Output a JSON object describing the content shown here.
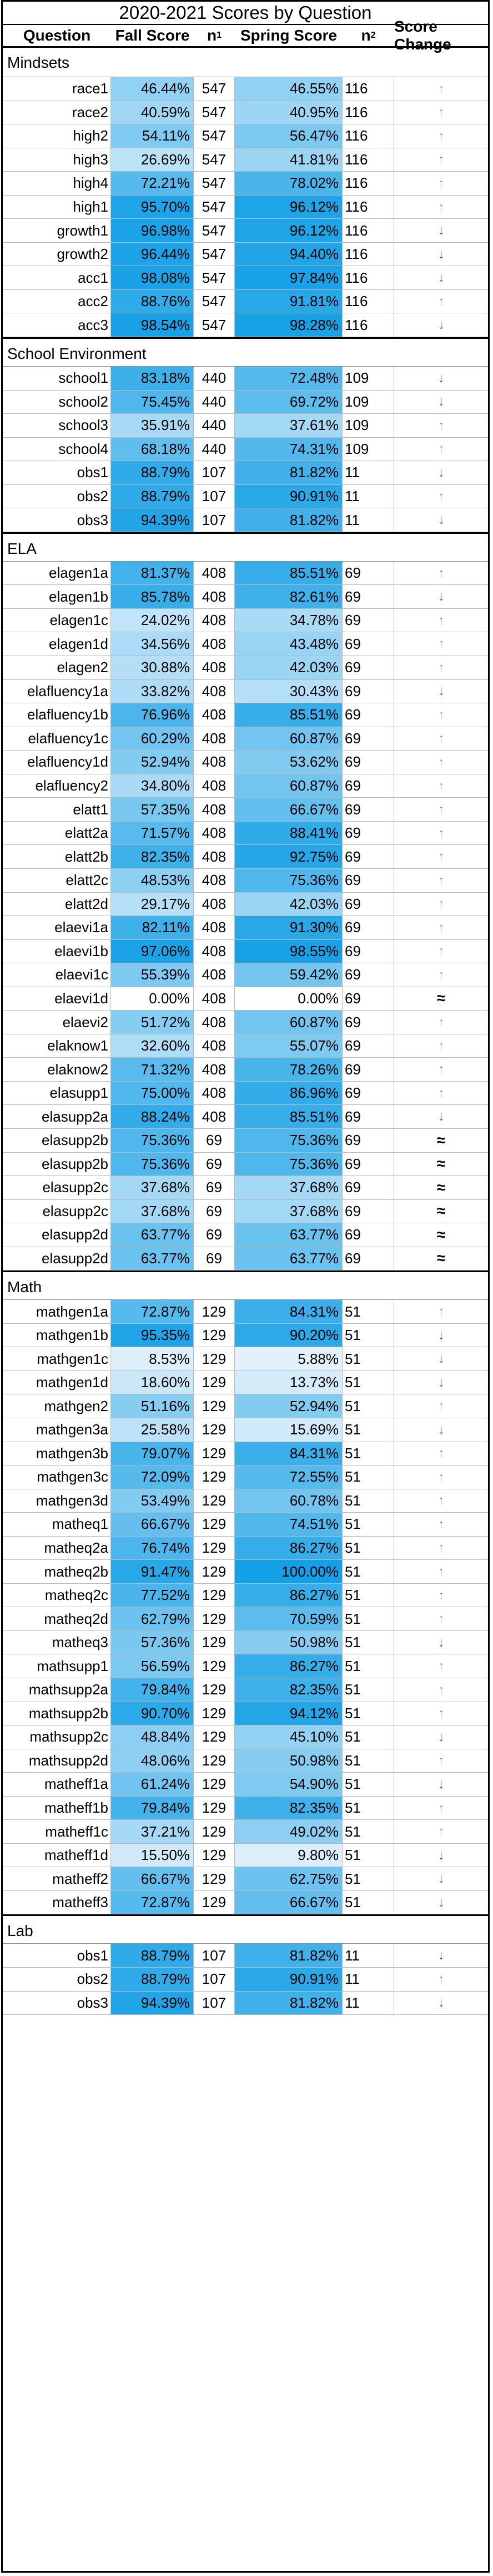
{
  "title": "2020-2021 Scores by Question",
  "headers": {
    "question": "Question",
    "fall": "Fall Score",
    "n1": "n",
    "n1_sub": "1",
    "spring": "Spring Score",
    "n2": "n",
    "n2_sub": "2",
    "change": "Score Change"
  },
  "sections": [
    {
      "name": "Mindsets",
      "rows": [
        {
          "q": "race1",
          "fall": "46.44%",
          "n1": "547",
          "spring": "46.55%",
          "n2": "116",
          "change": "up"
        },
        {
          "q": "race2",
          "fall": "40.59%",
          "n1": "547",
          "spring": "40.95%",
          "n2": "116",
          "change": "up"
        },
        {
          "q": "high2",
          "fall": "54.11%",
          "n1": "547",
          "spring": "56.47%",
          "n2": "116",
          "change": "up"
        },
        {
          "q": "high3",
          "fall": "26.69%",
          "n1": "547",
          "spring": "41.81%",
          "n2": "116",
          "change": "up"
        },
        {
          "q": "high4",
          "fall": "72.21%",
          "n1": "547",
          "spring": "78.02%",
          "n2": "116",
          "change": "up"
        },
        {
          "q": "high1",
          "fall": "95.70%",
          "n1": "547",
          "spring": "96.12%",
          "n2": "116",
          "change": "up"
        },
        {
          "q": "growth1",
          "fall": "96.98%",
          "n1": "547",
          "spring": "96.12%",
          "n2": "116",
          "change": "down"
        },
        {
          "q": "growth2",
          "fall": "96.44%",
          "n1": "547",
          "spring": "94.40%",
          "n2": "116",
          "change": "down"
        },
        {
          "q": "acc1",
          "fall": "98.08%",
          "n1": "547",
          "spring": "97.84%",
          "n2": "116",
          "change": "down"
        },
        {
          "q": "acc2",
          "fall": "88.76%",
          "n1": "547",
          "spring": "91.81%",
          "n2": "116",
          "change": "up"
        },
        {
          "q": "acc3",
          "fall": "98.54%",
          "n1": "547",
          "spring": "98.28%",
          "n2": "116",
          "change": "down"
        }
      ]
    },
    {
      "name": "School Environment",
      "rows": [
        {
          "q": "school1",
          "fall": "83.18%",
          "n1": "440",
          "spring": "72.48%",
          "n2": "109",
          "change": "down"
        },
        {
          "q": "school2",
          "fall": "75.45%",
          "n1": "440",
          "spring": "69.72%",
          "n2": "109",
          "change": "down"
        },
        {
          "q": "school3",
          "fall": "35.91%",
          "n1": "440",
          "spring": "37.61%",
          "n2": "109",
          "change": "up"
        },
        {
          "q": "school4",
          "fall": "68.18%",
          "n1": "440",
          "spring": "74.31%",
          "n2": "109",
          "change": "up"
        },
        {
          "q": "obs1",
          "fall": "88.79%",
          "n1": "107",
          "spring": "81.82%",
          "n2": "11",
          "change": "down"
        },
        {
          "q": "obs2",
          "fall": "88.79%",
          "n1": "107",
          "spring": "90.91%",
          "n2": "11",
          "change": "up"
        },
        {
          "q": "obs3",
          "fall": "94.39%",
          "n1": "107",
          "spring": "81.82%",
          "n2": "11",
          "change": "down"
        }
      ]
    },
    {
      "name": "ELA",
      "rows": [
        {
          "q": "elagen1a",
          "fall": "81.37%",
          "n1": "408",
          "spring": "85.51%",
          "n2": "69",
          "change": "up"
        },
        {
          "q": "elagen1b",
          "fall": "85.78%",
          "n1": "408",
          "spring": "82.61%",
          "n2": "69",
          "change": "down"
        },
        {
          "q": "elagen1c",
          "fall": "24.02%",
          "n1": "408",
          "spring": "34.78%",
          "n2": "69",
          "change": "up"
        },
        {
          "q": "elagen1d",
          "fall": "34.56%",
          "n1": "408",
          "spring": "43.48%",
          "n2": "69",
          "change": "up"
        },
        {
          "q": "elagen2",
          "fall": "30.88%",
          "n1": "408",
          "spring": "42.03%",
          "n2": "69",
          "change": "up"
        },
        {
          "q": "elafluency1a",
          "fall": "33.82%",
          "n1": "408",
          "spring": "30.43%",
          "n2": "69",
          "change": "down"
        },
        {
          "q": "elafluency1b",
          "fall": "76.96%",
          "n1": "408",
          "spring": "85.51%",
          "n2": "69",
          "change": "up"
        },
        {
          "q": "elafluency1c",
          "fall": "60.29%",
          "n1": "408",
          "spring": "60.87%",
          "n2": "69",
          "change": "up"
        },
        {
          "q": "elafluency1d",
          "fall": "52.94%",
          "n1": "408",
          "spring": "53.62%",
          "n2": "69",
          "change": "up"
        },
        {
          "q": "elafluency2",
          "fall": "34.80%",
          "n1": "408",
          "spring": "60.87%",
          "n2": "69",
          "change": "up"
        },
        {
          "q": "elatt1",
          "fall": "57.35%",
          "n1": "408",
          "spring": "66.67%",
          "n2": "69",
          "change": "up"
        },
        {
          "q": "elatt2a",
          "fall": "71.57%",
          "n1": "408",
          "spring": "88.41%",
          "n2": "69",
          "change": "up"
        },
        {
          "q": "elatt2b",
          "fall": "82.35%",
          "n1": "408",
          "spring": "92.75%",
          "n2": "69",
          "change": "up"
        },
        {
          "q": "elatt2c",
          "fall": "48.53%",
          "n1": "408",
          "spring": "75.36%",
          "n2": "69",
          "change": "up"
        },
        {
          "q": "elatt2d",
          "fall": "29.17%",
          "n1": "408",
          "spring": "42.03%",
          "n2": "69",
          "change": "up"
        },
        {
          "q": "elaevi1a",
          "fall": "82.11%",
          "n1": "408",
          "spring": "91.30%",
          "n2": "69",
          "change": "up"
        },
        {
          "q": "elaevi1b",
          "fall": "97.06%",
          "n1": "408",
          "spring": "98.55%",
          "n2": "69",
          "change": "up"
        },
        {
          "q": "elaevi1c",
          "fall": "55.39%",
          "n1": "408",
          "spring": "59.42%",
          "n2": "69",
          "change": "up"
        },
        {
          "q": "elaevi1d",
          "fall": "0.00%",
          "n1": "408",
          "spring": "0.00%",
          "n2": "69",
          "change": "same"
        },
        {
          "q": "elaevi2",
          "fall": "51.72%",
          "n1": "408",
          "spring": "60.87%",
          "n2": "69",
          "change": "up"
        },
        {
          "q": "elaknow1",
          "fall": "32.60%",
          "n1": "408",
          "spring": "55.07%",
          "n2": "69",
          "change": "up"
        },
        {
          "q": "elaknow2",
          "fall": "71.32%",
          "n1": "408",
          "spring": "78.26%",
          "n2": "69",
          "change": "up"
        },
        {
          "q": "elasupp1",
          "fall": "75.00%",
          "n1": "408",
          "spring": "86.96%",
          "n2": "69",
          "change": "up"
        },
        {
          "q": "elasupp2a",
          "fall": "88.24%",
          "n1": "408",
          "spring": "85.51%",
          "n2": "69",
          "change": "down"
        },
        {
          "q": "elasupp2b",
          "fall": "75.36%",
          "n1": "69",
          "spring": "75.36%",
          "n2": "69",
          "change": "same"
        },
        {
          "q": "elasupp2b",
          "fall": "75.36%",
          "n1": "69",
          "spring": "75.36%",
          "n2": "69",
          "change": "same"
        },
        {
          "q": "elasupp2c",
          "fall": "37.68%",
          "n1": "69",
          "spring": "37.68%",
          "n2": "69",
          "change": "same"
        },
        {
          "q": "elasupp2c",
          "fall": "37.68%",
          "n1": "69",
          "spring": "37.68%",
          "n2": "69",
          "change": "same"
        },
        {
          "q": "elasupp2d",
          "fall": "63.77%",
          "n1": "69",
          "spring": "63.77%",
          "n2": "69",
          "change": "same"
        },
        {
          "q": "elasupp2d",
          "fall": "63.77%",
          "n1": "69",
          "spring": "63.77%",
          "n2": "69",
          "change": "same"
        }
      ]
    },
    {
      "name": "Math",
      "rows": [
        {
          "q": "mathgen1a",
          "fall": "72.87%",
          "n1": "129",
          "spring": "84.31%",
          "n2": "51",
          "change": "up"
        },
        {
          "q": "mathgen1b",
          "fall": "95.35%",
          "n1": "129",
          "spring": "90.20%",
          "n2": "51",
          "change": "down"
        },
        {
          "q": "mathgen1c",
          "fall": "8.53%",
          "n1": "129",
          "spring": "5.88%",
          "n2": "51",
          "change": "down"
        },
        {
          "q": "mathgen1d",
          "fall": "18.60%",
          "n1": "129",
          "spring": "13.73%",
          "n2": "51",
          "change": "down"
        },
        {
          "q": "mathgen2",
          "fall": "51.16%",
          "n1": "129",
          "spring": "52.94%",
          "n2": "51",
          "change": "up"
        },
        {
          "q": "mathgen3a",
          "fall": "25.58%",
          "n1": "129",
          "spring": "15.69%",
          "n2": "51",
          "change": "down"
        },
        {
          "q": "mathgen3b",
          "fall": "79.07%",
          "n1": "129",
          "spring": "84.31%",
          "n2": "51",
          "change": "up"
        },
        {
          "q": "mathgen3c",
          "fall": "72.09%",
          "n1": "129",
          "spring": "72.55%",
          "n2": "51",
          "change": "up"
        },
        {
          "q": "mathgen3d",
          "fall": "53.49%",
          "n1": "129",
          "spring": "60.78%",
          "n2": "51",
          "change": "up"
        },
        {
          "q": "matheq1",
          "fall": "66.67%",
          "n1": "129",
          "spring": "74.51%",
          "n2": "51",
          "change": "up"
        },
        {
          "q": "matheq2a",
          "fall": "76.74%",
          "n1": "129",
          "spring": "86.27%",
          "n2": "51",
          "change": "up"
        },
        {
          "q": "matheq2b",
          "fall": "91.47%",
          "n1": "129",
          "spring": "100.00%",
          "n2": "51",
          "change": "up"
        },
        {
          "q": "matheq2c",
          "fall": "77.52%",
          "n1": "129",
          "spring": "86.27%",
          "n2": "51",
          "change": "up"
        },
        {
          "q": "matheq2d",
          "fall": "62.79%",
          "n1": "129",
          "spring": "70.59%",
          "n2": "51",
          "change": "up"
        },
        {
          "q": "matheq3",
          "fall": "57.36%",
          "n1": "129",
          "spring": "50.98%",
          "n2": "51",
          "change": "down"
        },
        {
          "q": "mathsupp1",
          "fall": "56.59%",
          "n1": "129",
          "spring": "86.27%",
          "n2": "51",
          "change": "up"
        },
        {
          "q": "mathsupp2a",
          "fall": "79.84%",
          "n1": "129",
          "spring": "82.35%",
          "n2": "51",
          "change": "up"
        },
        {
          "q": "mathsupp2b",
          "fall": "90.70%",
          "n1": "129",
          "spring": "94.12%",
          "n2": "51",
          "change": "up"
        },
        {
          "q": "mathsupp2c",
          "fall": "48.84%",
          "n1": "129",
          "spring": "45.10%",
          "n2": "51",
          "change": "down"
        },
        {
          "q": "mathsupp2d",
          "fall": "48.06%",
          "n1": "129",
          "spring": "50.98%",
          "n2": "51",
          "change": "up"
        },
        {
          "q": "matheff1a",
          "fall": "61.24%",
          "n1": "129",
          "spring": "54.90%",
          "n2": "51",
          "change": "down"
        },
        {
          "q": "matheff1b",
          "fall": "79.84%",
          "n1": "129",
          "spring": "82.35%",
          "n2": "51",
          "change": "up"
        },
        {
          "q": "matheff1c",
          "fall": "37.21%",
          "n1": "129",
          "spring": "49.02%",
          "n2": "51",
          "change": "up"
        },
        {
          "q": "matheff1d",
          "fall": "15.50%",
          "n1": "129",
          "spring": "9.80%",
          "n2": "51",
          "change": "down"
        },
        {
          "q": "matheff2",
          "fall": "66.67%",
          "n1": "129",
          "spring": "62.75%",
          "n2": "51",
          "change": "down"
        },
        {
          "q": "matheff3",
          "fall": "72.87%",
          "n1": "129",
          "spring": "66.67%",
          "n2": "51",
          "change": "down"
        }
      ]
    },
    {
      "name": "Lab",
      "rows": [
        {
          "q": "obs1",
          "fall": "88.79%",
          "n1": "107",
          "spring": "81.82%",
          "n2": "11",
          "change": "down"
        },
        {
          "q": "obs2",
          "fall": "88.79%",
          "n1": "107",
          "spring": "90.91%",
          "n2": "11",
          "change": "up"
        },
        {
          "q": "obs3",
          "fall": "94.39%",
          "n1": "107",
          "spring": "81.82%",
          "n2": "11",
          "change": "down"
        }
      ]
    }
  ],
  "change_symbols": {
    "up": "↑",
    "down": "↓",
    "same": "≈"
  }
}
